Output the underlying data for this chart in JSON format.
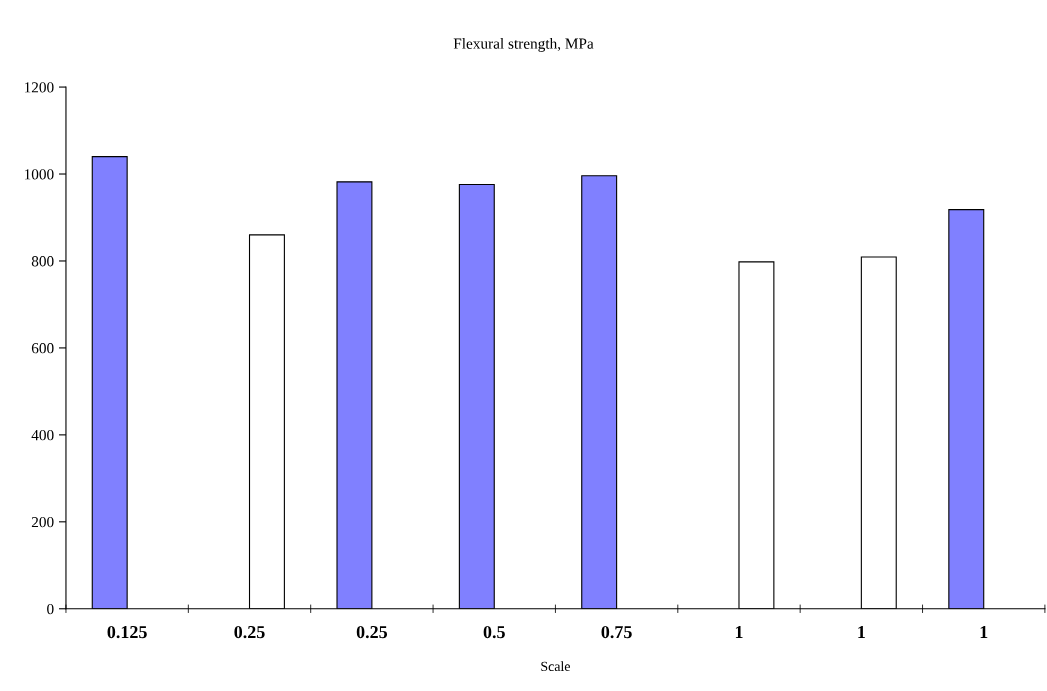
{
  "chart_data": {
    "type": "bar",
    "title": "Flexural strength, MPa",
    "xlabel": "Scale",
    "categories": [
      "0.125",
      "0.25",
      "0.25",
      "0.5",
      "0.75",
      "1",
      "1",
      "1"
    ],
    "series": [
      {
        "color": "#8080ff",
        "values": [
          1040,
          null,
          982,
          976,
          996,
          null,
          null,
          918
        ]
      },
      {
        "color": "#ffffff",
        "values": [
          null,
          860,
          null,
          null,
          null,
          798,
          809,
          null
        ]
      }
    ],
    "ylim": [
      0,
      1200
    ],
    "yticks": [
      0,
      200,
      400,
      600,
      800,
      1000,
      1200
    ],
    "grid": false,
    "legend": false
  }
}
